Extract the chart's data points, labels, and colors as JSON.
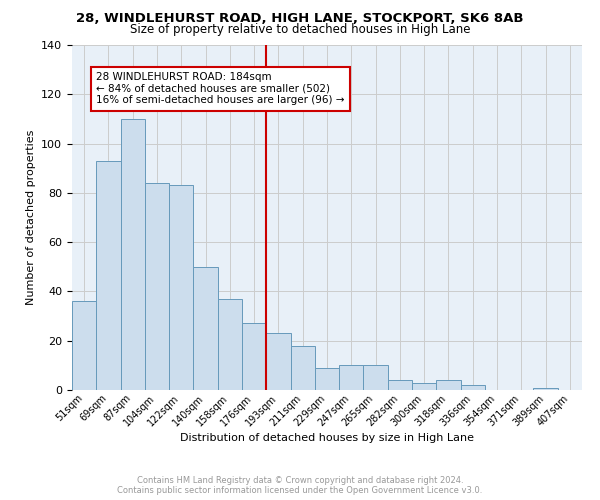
{
  "title": "28, WINDLEHURST ROAD, HIGH LANE, STOCKPORT, SK6 8AB",
  "subtitle": "Size of property relative to detached houses in High Lane",
  "xlabel": "Distribution of detached houses by size in High Lane",
  "ylabel": "Number of detached properties",
  "bar_color": "#ccdded",
  "bar_edge_color": "#6699bb",
  "categories": [
    "51sqm",
    "69sqm",
    "87sqm",
    "104sqm",
    "122sqm",
    "140sqm",
    "158sqm",
    "176sqm",
    "193sqm",
    "211sqm",
    "229sqm",
    "247sqm",
    "265sqm",
    "282sqm",
    "300sqm",
    "318sqm",
    "336sqm",
    "354sqm",
    "371sqm",
    "389sqm",
    "407sqm"
  ],
  "values": [
    36,
    93,
    110,
    84,
    83,
    50,
    37,
    27,
    23,
    18,
    9,
    10,
    10,
    4,
    3,
    4,
    2,
    0,
    0,
    1,
    0
  ],
  "vline_x": 7.5,
  "vline_color": "#cc0000",
  "annotation_lines": [
    "28 WINDLEHURST ROAD: 184sqm",
    "← 84% of detached houses are smaller (502)",
    "16% of semi-detached houses are larger (96) →"
  ],
  "footer_line1": "Contains HM Land Registry data © Crown copyright and database right 2024.",
  "footer_line2": "Contains public sector information licensed under the Open Government Licence v3.0.",
  "ylim": [
    0,
    140
  ],
  "grid_color": "#cccccc",
  "background_color": "#e8f0f8"
}
